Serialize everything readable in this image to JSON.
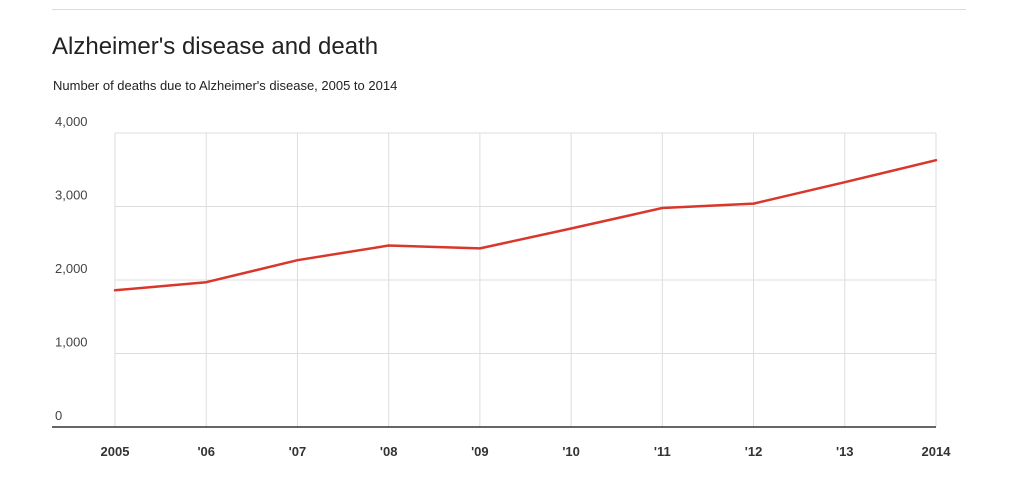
{
  "chart_data": {
    "type": "line",
    "title": "Alzheimer's disease and death",
    "subtitle": "Number of deaths due to Alzheimer's disease, 2005 to 2014",
    "xlabel": "",
    "ylabel": "",
    "categories": [
      "2005",
      "'06",
      "'07",
      "'08",
      "'09",
      "'10",
      "'11",
      "'12",
      "'13",
      "2014"
    ],
    "series": [
      {
        "values": [
          1860,
          1970,
          2270,
          2470,
          2430,
          2700,
          2980,
          3040,
          3330,
          3630
        ],
        "color": "#d9372b"
      }
    ],
    "ylim": [
      0,
      4000
    ],
    "yticks": [
      0,
      1000,
      2000,
      3000,
      4000
    ],
    "ytick_labels": [
      "0",
      "1,000",
      "2,000",
      "3,000",
      "4,000"
    ],
    "grid": true,
    "legend": "none"
  }
}
